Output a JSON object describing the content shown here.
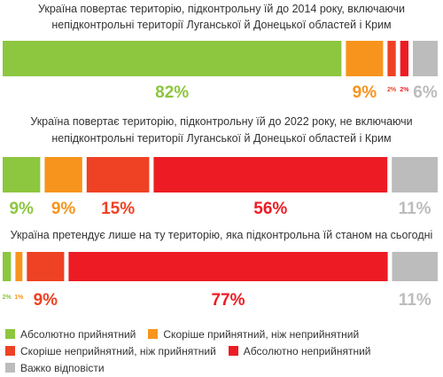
{
  "colors": {
    "abs_acceptable": "#8dc63f",
    "rather_acceptable": "#f7941d",
    "rather_unacceptable": "#ef4123",
    "abs_unacceptable": "#ed1c24",
    "hard_to_say": "#bcbcbc"
  },
  "chart_data": [
    {
      "type": "bar",
      "orientation": "stacked-horizontal",
      "title_lines": [
        "Україна повертає територію, підконтрольну їй до 2014 року, включаючи",
        "непідконтрольні території Луганської й Донецької областей і Крим"
      ],
      "values": [
        82,
        9,
        2,
        2,
        6
      ],
      "labels": [
        "82%",
        "9%",
        "2%",
        "2%",
        "6%"
      ],
      "ylim": [
        0,
        100
      ]
    },
    {
      "type": "bar",
      "orientation": "stacked-horizontal",
      "title_lines": [
        "Україна повертає територію, підконтрольну їй до 2022 року, не включаючи",
        "непідконтрольні території Луганської й Донецької областей і Крим"
      ],
      "values": [
        9,
        9,
        15,
        56,
        11
      ],
      "labels": [
        "9%",
        "9%",
        "15%",
        "56%",
        "11%"
      ],
      "ylim": [
        0,
        100
      ]
    },
    {
      "type": "bar",
      "orientation": "stacked-horizontal",
      "title_lines": [
        "Україна претендує лише на ту територію, яка підконтрольна їй станом на сьогодні"
      ],
      "values": [
        2,
        1,
        9,
        77,
        11
      ],
      "labels": [
        "2%",
        "1%",
        "9%",
        "77%",
        "11%"
      ],
      "ylim": [
        0,
        100
      ]
    }
  ],
  "legend": [
    {
      "label": "Абсолютно прийнятний",
      "color_key": "abs_acceptable"
    },
    {
      "label": "Скоріше прийнятний, ніж неприйнятний",
      "color_key": "rather_acceptable"
    },
    {
      "label": "Скоріше неприйнятний, ніж прийнятний",
      "color_key": "rather_unacceptable"
    },
    {
      "label": "Абсолютно неприйнятний",
      "color_key": "abs_unacceptable"
    },
    {
      "label": "Важко відповісти",
      "color_key": "hard_to_say"
    }
  ]
}
